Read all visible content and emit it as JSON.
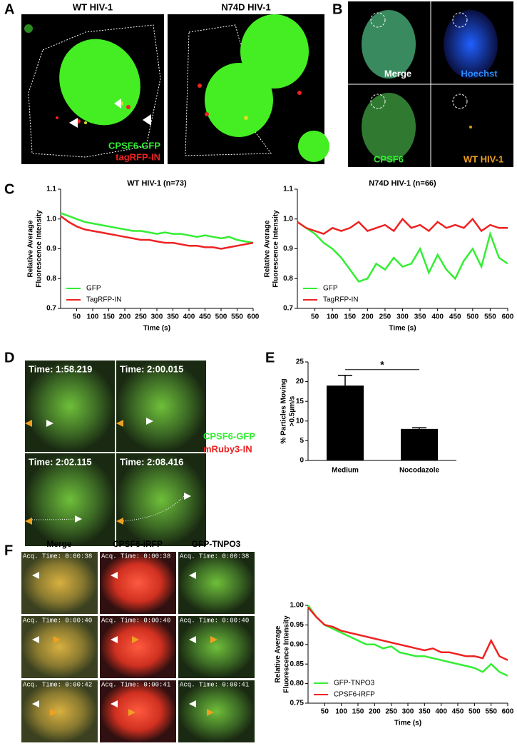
{
  "panel_labels": [
    "A",
    "B",
    "C",
    "D",
    "E",
    "F"
  ],
  "panel_a": {
    "titles": [
      "WT HIV-1",
      "N74D HIV-1"
    ],
    "legend": [
      "CPSF6-GFP",
      "tagRFP-IN"
    ]
  },
  "panel_b": {
    "labels": [
      "Merge",
      "Hoechst",
      "CPSF6",
      "WT HIV-1"
    ]
  },
  "panel_d": {
    "times": [
      "Time: 1:58.219",
      "Time: 2:00.015",
      "Time: 2:02.115",
      "Time: 2:08.416"
    ],
    "legend": [
      "CPSF6-GFP",
      "mRuby3-IN"
    ]
  },
  "panel_f": {
    "columns": [
      "Merge",
      "CPSF6-iRFP",
      "GFP-TNPO3"
    ],
    "times": [
      [
        "Acq. Time: 0:00:38",
        "Acq. Time: 0:00:38",
        "Acq. Time: 0:00:38"
      ],
      [
        "Acq. Time: 0:00:40",
        "Acq. Time: 0:00:40",
        "Acq. Time: 0:00:40"
      ],
      [
        "Acq. Time: 0:00:42",
        "Acq. Time: 0:00:41",
        "Acq. Time: 0:00:41"
      ]
    ]
  },
  "chart_data": [
    {
      "type": "line",
      "title": "WT HIV-1 (n=73)",
      "xlabel": "Time (s)",
      "ylabel": [
        "Relative Average",
        "Fluorescence Intensity"
      ],
      "x": [
        0,
        25,
        50,
        75,
        100,
        125,
        150,
        175,
        200,
        225,
        250,
        275,
        300,
        325,
        350,
        375,
        400,
        425,
        450,
        475,
        500,
        525,
        550,
        575,
        600
      ],
      "xlim": [
        0,
        600
      ],
      "xticks": [
        50,
        100,
        150,
        200,
        250,
        300,
        350,
        400,
        450,
        500,
        550,
        600
      ],
      "ylim": [
        0.7,
        1.1
      ],
      "yticks": [
        0.7,
        0.8,
        0.9,
        {
          "value": 1.0,
          "label": "1.0"
        },
        1.1
      ],
      "legend": "lower left",
      "series": [
        {
          "name": "GFP",
          "color": "#33ee33",
          "values": [
            1.02,
            1.01,
            1.0,
            0.99,
            0.985,
            0.98,
            0.975,
            0.97,
            0.965,
            0.96,
            0.96,
            0.955,
            0.95,
            0.955,
            0.95,
            0.95,
            0.945,
            0.94,
            0.945,
            0.94,
            0.935,
            0.94,
            0.93,
            0.925,
            0.92
          ]
        },
        {
          "name": "TagRFP-IN",
          "color": "#ee2222",
          "values": [
            1.01,
            0.99,
            0.975,
            0.965,
            0.96,
            0.955,
            0.95,
            0.945,
            0.94,
            0.935,
            0.93,
            0.93,
            0.925,
            0.92,
            0.92,
            0.915,
            0.91,
            0.91,
            0.905,
            0.905,
            0.9,
            0.905,
            0.91,
            0.915,
            0.92
          ]
        }
      ]
    },
    {
      "type": "line",
      "title": "N74D HIV-1 (n=66)",
      "xlabel": "Time (s)",
      "ylabel": [
        "Relative Average",
        "Fluorescence Intensity"
      ],
      "x": [
        0,
        25,
        50,
        75,
        100,
        125,
        150,
        175,
        200,
        225,
        250,
        275,
        300,
        325,
        350,
        375,
        400,
        425,
        450,
        475,
        500,
        525,
        550,
        575,
        600
      ],
      "xlim": [
        0,
        600
      ],
      "xticks": [
        50,
        100,
        150,
        200,
        250,
        300,
        350,
        400,
        450,
        500,
        550,
        600
      ],
      "ylim": [
        0.7,
        1.1
      ],
      "yticks": [
        0.7,
        0.8,
        0.9,
        {
          "value": 1.0,
          "label": "1.0"
        },
        1.1
      ],
      "legend": "lower left",
      "series": [
        {
          "name": "GFP",
          "color": "#33ee33",
          "values": [
            0.99,
            0.97,
            0.95,
            0.92,
            0.9,
            0.87,
            0.83,
            0.79,
            0.8,
            0.85,
            0.83,
            0.87,
            0.84,
            0.85,
            0.9,
            0.82,
            0.88,
            0.83,
            0.8,
            0.86,
            0.9,
            0.84,
            0.95,
            0.87,
            0.85
          ]
        },
        {
          "name": "TagRFP-IN",
          "color": "#ee2222",
          "values": [
            0.99,
            0.97,
            0.96,
            0.95,
            0.97,
            0.96,
            0.97,
            0.99,
            0.96,
            0.97,
            0.98,
            0.96,
            1.0,
            0.97,
            0.98,
            0.96,
            0.99,
            0.97,
            0.98,
            0.97,
            1.0,
            0.96,
            0.98,
            0.97,
            0.97
          ]
        }
      ]
    },
    {
      "type": "bar",
      "ylabel": [
        "% Particles Moving",
        ">0.5µm/s"
      ],
      "categories": [
        "Medium",
        "Nocodazole"
      ],
      "values": [
        19,
        8
      ],
      "errors": [
        2.6,
        0.3
      ],
      "color": "#000000",
      "ylim": [
        0,
        25
      ],
      "yticks": [
        0,
        5,
        10,
        15,
        20,
        25
      ],
      "annotation": "*"
    },
    {
      "type": "line",
      "xlabel": "Time (s)",
      "ylabel": [
        "Relative Average",
        "Fluorescence Intensity"
      ],
      "x": [
        0,
        25,
        50,
        75,
        100,
        125,
        150,
        175,
        200,
        225,
        250,
        275,
        300,
        325,
        350,
        375,
        400,
        425,
        450,
        475,
        500,
        525,
        550,
        575,
        600
      ],
      "xlim": [
        0,
        600
      ],
      "xticks": [
        50,
        100,
        150,
        200,
        250,
        300,
        350,
        400,
        450,
        500,
        550,
        600
      ],
      "ylim": [
        0.75,
        1.0
      ],
      "yticks": [
        0.75,
        {
          "value": 0.8,
          "label": "0.80"
        },
        0.85,
        {
          "value": 0.9,
          "label": "0.90"
        },
        0.95,
        {
          "value": 1.0,
          "label": "1.00"
        }
      ],
      "legend": "lower left",
      "series": [
        {
          "name": "GFP-TNPO3",
          "color": "#33ee33",
          "values": [
            1.0,
            0.97,
            0.95,
            0.94,
            0.93,
            0.92,
            0.91,
            0.9,
            0.9,
            0.89,
            0.895,
            0.88,
            0.875,
            0.87,
            0.87,
            0.865,
            0.86,
            0.855,
            0.85,
            0.845,
            0.84,
            0.83,
            0.85,
            0.83,
            0.82
          ]
        },
        {
          "name": "CPSF6-iRFP",
          "color": "#ee2222",
          "values": [
            0.995,
            0.97,
            0.95,
            0.945,
            0.935,
            0.93,
            0.925,
            0.92,
            0.915,
            0.91,
            0.905,
            0.9,
            0.895,
            0.89,
            0.885,
            0.89,
            0.88,
            0.88,
            0.875,
            0.87,
            0.87,
            0.865,
            0.91,
            0.87,
            0.86
          ]
        }
      ]
    }
  ]
}
